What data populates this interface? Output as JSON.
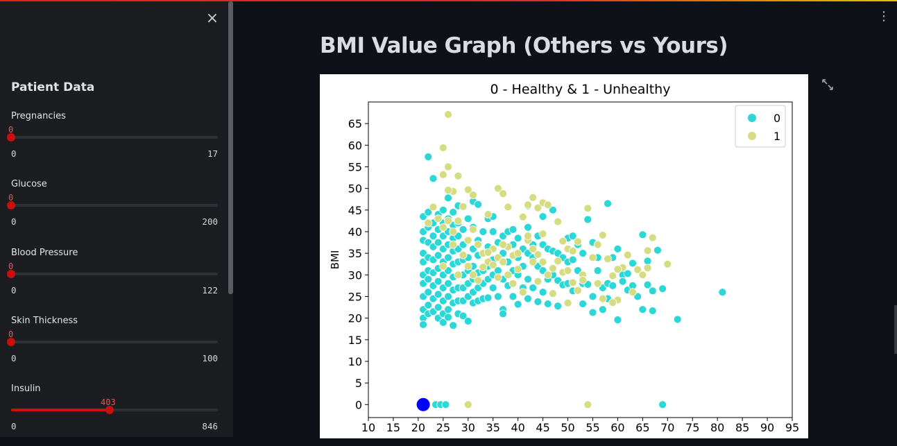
{
  "sidebar": {
    "title": "Patient Data",
    "sliders": [
      {
        "label": "Pregnancies",
        "value": "0",
        "min": "0",
        "max": "17"
      },
      {
        "label": "Glucose",
        "value": "0",
        "min": "0",
        "max": "200"
      },
      {
        "label": "Blood Pressure",
        "value": "0",
        "min": "0",
        "max": "122"
      },
      {
        "label": "Skin Thickness",
        "value": "0",
        "min": "0",
        "max": "100"
      },
      {
        "label": "Insulin",
        "value": "403",
        "min": "0",
        "max": "846"
      }
    ]
  },
  "main": {
    "heading": "BMI Value Graph (Others vs Yours)"
  },
  "icons": {
    "close": "close-icon",
    "menu": "kebab-menu-icon",
    "fullscreen": "fullscreen-icon"
  },
  "colors": {
    "accent": "#ff4b4b",
    "healthy": "#2bd7d7",
    "unhealthy": "#d6dc82",
    "yours": "#0000ff"
  },
  "chart_data": {
    "type": "scatter",
    "title": "0 - Healthy & 1 - Unhealthy",
    "xlabel": "",
    "ylabel": "BMI",
    "xlim": [
      10,
      95
    ],
    "ylim": [
      -3,
      70
    ],
    "xticks": [
      10,
      15,
      20,
      25,
      30,
      35,
      40,
      45,
      50,
      55,
      60,
      65,
      70,
      75,
      80,
      85,
      90,
      95
    ],
    "yticks": [
      0,
      5,
      10,
      15,
      20,
      25,
      30,
      35,
      40,
      45,
      50,
      55,
      60,
      65
    ],
    "grid": false,
    "legend_position": "top-right",
    "series": [
      {
        "name": "0",
        "color": "#2bd7d7",
        "points": [
          [
            21,
            43.5
          ],
          [
            21,
            40
          ],
          [
            21,
            38
          ],
          [
            21,
            35
          ],
          [
            21,
            33
          ],
          [
            21,
            30
          ],
          [
            21,
            28
          ],
          [
            21,
            25
          ],
          [
            21,
            22
          ],
          [
            21,
            20
          ],
          [
            21,
            18.5
          ],
          [
            22,
            44.5
          ],
          [
            22,
            41
          ],
          [
            22,
            37.5
          ],
          [
            22,
            34
          ],
          [
            22,
            31
          ],
          [
            22,
            29
          ],
          [
            22,
            26
          ],
          [
            22,
            23
          ],
          [
            22,
            21
          ],
          [
            22,
            57.3
          ],
          [
            23,
            52.3
          ],
          [
            23,
            42
          ],
          [
            23,
            39
          ],
          [
            23,
            36.5
          ],
          [
            23,
            33.5
          ],
          [
            23,
            30.5
          ],
          [
            23,
            27.5
          ],
          [
            23,
            24.5
          ],
          [
            23,
            21.5
          ],
          [
            24,
            44
          ],
          [
            24,
            40.5
          ],
          [
            24,
            37.5
          ],
          [
            24,
            34.5
          ],
          [
            24,
            31.5
          ],
          [
            24,
            28.5
          ],
          [
            24,
            25.5
          ],
          [
            24,
            22.5
          ],
          [
            24,
            20
          ],
          [
            25,
            45
          ],
          [
            25,
            42
          ],
          [
            25,
            39
          ],
          [
            25,
            36
          ],
          [
            25,
            33
          ],
          [
            25,
            30
          ],
          [
            25,
            27
          ],
          [
            25,
            24
          ],
          [
            25,
            21
          ],
          [
            25,
            19
          ],
          [
            26,
            47.8
          ],
          [
            26,
            43
          ],
          [
            26,
            40
          ],
          [
            26,
            37
          ],
          [
            26,
            34
          ],
          [
            26,
            31
          ],
          [
            26,
            28
          ],
          [
            26,
            25
          ],
          [
            26,
            22
          ],
          [
            26,
            20.2
          ],
          [
            27,
            44.5
          ],
          [
            27,
            41.5
          ],
          [
            27,
            38.5
          ],
          [
            27,
            35.5
          ],
          [
            27,
            32.5
          ],
          [
            27,
            29.5
          ],
          [
            27,
            26.5
          ],
          [
            27,
            23.5
          ],
          [
            27,
            18.3
          ],
          [
            28,
            46
          ],
          [
            28,
            42
          ],
          [
            28,
            39
          ],
          [
            28,
            36
          ],
          [
            28,
            33
          ],
          [
            28,
            30
          ],
          [
            28,
            27
          ],
          [
            28,
            24
          ],
          [
            28,
            21
          ],
          [
            29,
            40.5
          ],
          [
            29,
            37
          ],
          [
            29,
            33.5
          ],
          [
            29,
            30
          ],
          [
            29,
            27
          ],
          [
            29,
            24
          ],
          [
            29,
            20.5
          ],
          [
            30,
            43
          ],
          [
            30,
            38
          ],
          [
            30,
            34
          ],
          [
            30,
            31
          ],
          [
            30,
            28
          ],
          [
            30,
            25
          ],
          [
            30,
            19.3
          ],
          [
            31,
            47
          ],
          [
            31,
            41
          ],
          [
            31,
            36
          ],
          [
            31,
            32
          ],
          [
            31,
            29
          ],
          [
            31,
            26
          ],
          [
            31,
            23.5
          ],
          [
            32,
            46.3
          ],
          [
            32,
            38
          ],
          [
            32,
            34.5
          ],
          [
            32,
            30.5
          ],
          [
            32,
            27
          ],
          [
            32,
            24
          ],
          [
            33,
            40
          ],
          [
            33,
            35
          ],
          [
            33,
            31
          ],
          [
            33,
            28
          ],
          [
            33,
            24.5
          ],
          [
            34,
            43
          ],
          [
            34,
            36.5
          ],
          [
            34,
            32
          ],
          [
            34,
            29
          ],
          [
            34,
            24.7
          ],
          [
            35,
            40
          ],
          [
            35,
            33.5
          ],
          [
            35,
            30
          ],
          [
            35,
            27
          ],
          [
            35,
            43.5
          ],
          [
            36,
            37.5
          ],
          [
            36,
            34
          ],
          [
            36,
            31
          ],
          [
            36,
            25
          ],
          [
            37,
            39
          ],
          [
            37,
            35
          ],
          [
            37,
            29
          ],
          [
            37,
            22
          ],
          [
            37,
            21
          ],
          [
            38,
            40
          ],
          [
            38,
            33
          ],
          [
            38,
            27.5
          ],
          [
            39,
            37
          ],
          [
            39,
            31
          ],
          [
            39,
            25
          ],
          [
            39,
            40.5
          ],
          [
            40,
            38.5
          ],
          [
            40,
            34
          ],
          [
            40,
            30
          ],
          [
            40,
            23.2
          ],
          [
            41,
            36
          ],
          [
            41,
            32
          ],
          [
            41,
            27
          ],
          [
            42,
            41
          ],
          [
            42,
            35
          ],
          [
            42,
            29
          ],
          [
            42,
            24.5
          ],
          [
            42,
            46
          ],
          [
            43,
            37
          ],
          [
            43,
            33
          ],
          [
            43,
            27
          ],
          [
            43,
            34
          ],
          [
            44,
            39
          ],
          [
            44,
            32
          ],
          [
            44,
            23.8
          ],
          [
            45,
            37
          ],
          [
            45,
            31
          ],
          [
            45,
            26
          ],
          [
            45,
            43.5
          ],
          [
            46,
            36
          ],
          [
            46,
            29
          ],
          [
            46,
            23.3
          ],
          [
            47,
            35.5
          ],
          [
            47,
            30
          ],
          [
            47,
            45
          ],
          [
            48,
            35
          ],
          [
            48,
            28.7
          ],
          [
            48,
            22.8
          ],
          [
            49,
            34
          ],
          [
            49,
            27.7
          ],
          [
            50,
            38.5
          ],
          [
            50,
            33
          ],
          [
            50,
            28
          ],
          [
            51,
            39
          ],
          [
            51,
            33.5
          ],
          [
            51,
            26.3
          ],
          [
            52,
            37
          ],
          [
            52,
            31
          ],
          [
            53,
            35
          ],
          [
            53,
            23.3
          ],
          [
            53,
            28
          ],
          [
            54,
            42.8
          ],
          [
            54,
            27.8
          ],
          [
            55,
            37.5
          ],
          [
            55,
            21.3
          ],
          [
            55,
            25
          ],
          [
            56,
            31
          ],
          [
            56,
            34
          ],
          [
            57,
            27
          ],
          [
            57,
            22
          ],
          [
            58,
            46.5
          ],
          [
            58,
            28
          ],
          [
            58,
            24.5
          ],
          [
            59,
            34
          ],
          [
            59,
            27.5
          ],
          [
            60,
            36
          ],
          [
            60,
            19.6
          ],
          [
            61,
            30
          ],
          [
            61,
            28.5
          ],
          [
            62,
            30.3
          ],
          [
            62,
            26.5
          ],
          [
            63,
            32.7
          ],
          [
            63,
            27.5
          ],
          [
            64,
            25
          ],
          [
            65,
            39.3
          ],
          [
            65,
            22
          ],
          [
            66,
            33.2
          ],
          [
            66,
            27.7
          ],
          [
            67,
            26.3
          ],
          [
            67,
            21.7
          ],
          [
            68,
            35.7
          ],
          [
            69,
            26.8
          ],
          [
            72,
            19.7
          ],
          [
            81,
            26
          ],
          [
            23.5,
            0
          ],
          [
            24.5,
            0
          ],
          [
            25.5,
            0
          ],
          [
            69,
            0
          ]
        ]
      },
      {
        "name": "1",
        "color": "#d6dc82",
        "points": [
          [
            26,
            67.1
          ],
          [
            25,
            59.4
          ],
          [
            28,
            52.9
          ],
          [
            25,
            53.2
          ],
          [
            26,
            55
          ],
          [
            27,
            49.3
          ],
          [
            26,
            49.6
          ],
          [
            30,
            49.7
          ],
          [
            31,
            48.5
          ],
          [
            36,
            50
          ],
          [
            37,
            48.8
          ],
          [
            42,
            46.2
          ],
          [
            43,
            47.9
          ],
          [
            44,
            45.5
          ],
          [
            45,
            46.7
          ],
          [
            46,
            46.2
          ],
          [
            38,
            45.7
          ],
          [
            34,
            44
          ],
          [
            22,
            42
          ],
          [
            23,
            45.7
          ],
          [
            24,
            43
          ],
          [
            25,
            41
          ],
          [
            26,
            42.5
          ],
          [
            27,
            40
          ],
          [
            28,
            42.5
          ],
          [
            29,
            45.8
          ],
          [
            30,
            38
          ],
          [
            31,
            40.5
          ],
          [
            32,
            37
          ],
          [
            33,
            35
          ],
          [
            34,
            33
          ],
          [
            35,
            36
          ],
          [
            36,
            34
          ],
          [
            37,
            33
          ],
          [
            38,
            36.5
          ],
          [
            39,
            34.5
          ],
          [
            40,
            35
          ],
          [
            41,
            43.4
          ],
          [
            42,
            38
          ],
          [
            43,
            36
          ],
          [
            44,
            34.7
          ],
          [
            45,
            33
          ],
          [
            46,
            30
          ],
          [
            47,
            31.5
          ],
          [
            48,
            33.2
          ],
          [
            49,
            30.6
          ],
          [
            50,
            36
          ],
          [
            51,
            35.5
          ],
          [
            52,
            37.7
          ],
          [
            53,
            30
          ],
          [
            54,
            45.4
          ],
          [
            55,
            34
          ],
          [
            56,
            37
          ],
          [
            57,
            39.2
          ],
          [
            58,
            33.7
          ],
          [
            59,
            29.8
          ],
          [
            60,
            24.2
          ],
          [
            61,
            31.7
          ],
          [
            62,
            34.6
          ],
          [
            63,
            26
          ],
          [
            64,
            31.2
          ],
          [
            65,
            30
          ],
          [
            66,
            35.6
          ],
          [
            67,
            38.6
          ],
          [
            70,
            32.5
          ],
          [
            50,
            23.5
          ],
          [
            52,
            26.4
          ],
          [
            47,
            25.7
          ],
          [
            29,
            34.6
          ],
          [
            30,
            32
          ],
          [
            31,
            30
          ],
          [
            32,
            28.7
          ],
          [
            33,
            31.8
          ],
          [
            34,
            35.2
          ],
          [
            35,
            32.3
          ],
          [
            36,
            29.4
          ],
          [
            37,
            37
          ],
          [
            38,
            30
          ],
          [
            39,
            28
          ],
          [
            40,
            31.3
          ],
          [
            41,
            26
          ],
          [
            42,
            39
          ],
          [
            43,
            33
          ],
          [
            44,
            28.5
          ],
          [
            45,
            39.5
          ],
          [
            48,
            42.3
          ],
          [
            49,
            37.8
          ],
          [
            50,
            31
          ],
          [
            51,
            28.2
          ],
          [
            53,
            28.8
          ],
          [
            56,
            28
          ],
          [
            59,
            23.6
          ],
          [
            60,
            31.3
          ],
          [
            66,
            31.6
          ],
          [
            57,
            24.5
          ],
          [
            30,
            0
          ],
          [
            54,
            0
          ],
          [
            27,
            37
          ],
          [
            28,
            30
          ],
          [
            25,
            32
          ]
        ]
      },
      {
        "name": "Yours",
        "color": "#0000ff",
        "points": [
          [
            21,
            0
          ]
        ]
      }
    ]
  }
}
